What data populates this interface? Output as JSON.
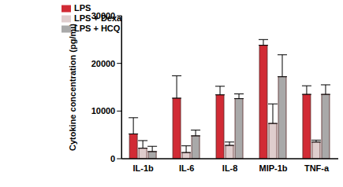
{
  "chart_data": {
    "type": "bar",
    "y_label": "Cytokine concentration (pg/ml)",
    "categories": [
      "IL-1b",
      "IL-6",
      "IL-8",
      "MIP-1b",
      "TNF-a"
    ],
    "series": [
      {
        "name": "LPS",
        "color": "#d12b35",
        "values": [
          5200,
          12700,
          13400,
          23800,
          13500
        ],
        "errors": [
          3400,
          4700,
          1800,
          1200,
          1800
        ]
      },
      {
        "name": "LPS + Dexa",
        "color": "#dfcdcd",
        "values": [
          2200,
          1300,
          2800,
          7400,
          3500
        ],
        "errors": [
          1600,
          1400,
          700,
          4100,
          400
        ]
      },
      {
        "name": "LPS + HCQ",
        "color": "#a9a9a9",
        "values": [
          1500,
          4800,
          12600,
          17200,
          13500
        ],
        "errors": [
          1100,
          1200,
          1000,
          4600,
          2000
        ]
      }
    ],
    "ylim": [
      0,
      30000
    ],
    "yticks": [
      0,
      10000,
      20000,
      30000
    ],
    "grid": false,
    "legend": "upper left"
  }
}
